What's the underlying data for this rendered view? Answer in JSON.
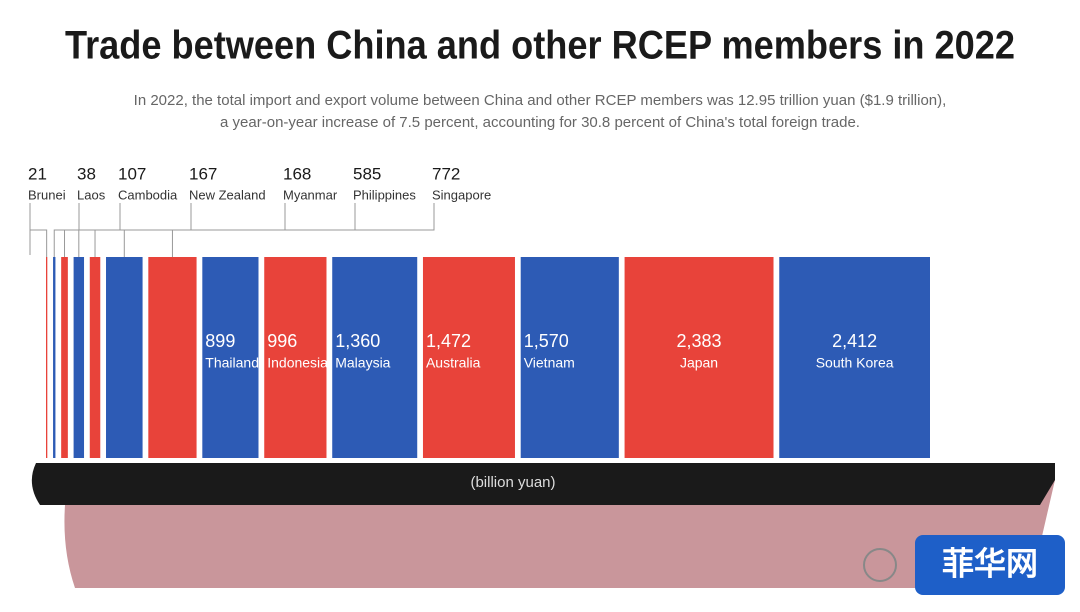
{
  "chart_data": {
    "type": "bar",
    "title": "Trade between China and other RCEP members in 2022",
    "subtitle_lines": [
      "In 2022, the total import and export volume between China and other RCEP members was 12.95 trillion yuan ($1.9 trillion),",
      "a year-on-year increase of 7.5 percent, accounting for 30.8 percent of China's total foreign trade."
    ],
    "unit": "(billion yuan)",
    "categories": [
      "Brunei",
      "Laos",
      "Cambodia",
      "New Zealand",
      "Myanmar",
      "Philippines",
      "Singapore",
      "Thailand",
      "Indonesia",
      "Malaysia",
      "Australia",
      "Vietnam",
      "Japan",
      "South Korea"
    ],
    "values": [
      21,
      38,
      107,
      167,
      168,
      585,
      772,
      899,
      996,
      1360,
      1472,
      1570,
      2383,
      2412
    ],
    "value_labels": [
      "21",
      "38",
      "107",
      "167",
      "168",
      "585",
      "772",
      "899",
      "996",
      "1,360",
      "1,472",
      "1,570",
      "2,383",
      "2,412"
    ],
    "colors": [
      "#e8433a",
      "#2d5bb5",
      "#e8433a",
      "#2d5bb5",
      "#e8433a",
      "#2d5bb5",
      "#e8433a",
      "#2d5bb5",
      "#e8433a",
      "#2d5bb5",
      "#e8433a",
      "#2d5bb5",
      "#e8433a",
      "#2d5bb5"
    ],
    "watermark": "菲华网"
  }
}
